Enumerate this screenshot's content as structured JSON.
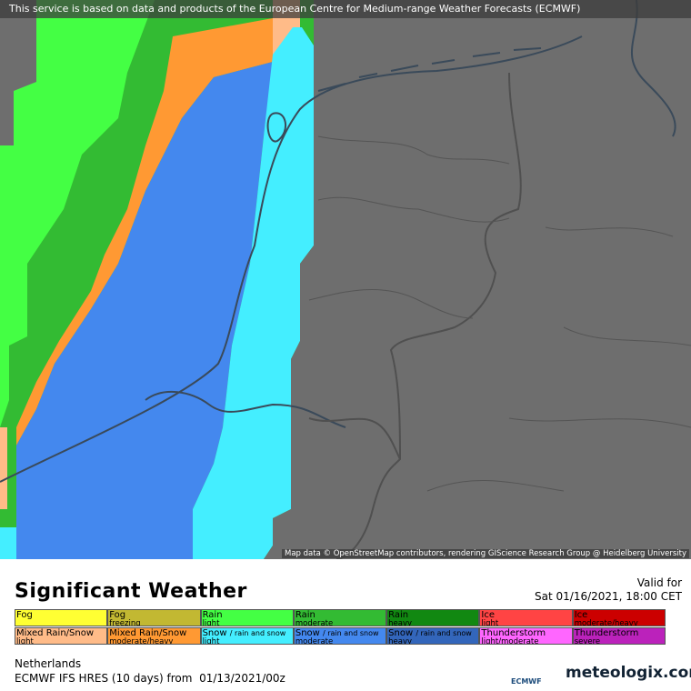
{
  "banner": "This service is based on data and products of the European Centre for Medium-range Weather Forecasts (ECMWF)",
  "attribution": "Map data © OpenStreetMap contributors, rendering GIScience Research Group @ Heidelberg University",
  "title": "Significant Weather",
  "valid_label": "Valid for",
  "valid_time": "Sat 01/16/2021, 18:00 CET",
  "legend": [
    [
      {
        "name": "Fog",
        "color": "#ffff33"
      },
      {
        "name": "Fog",
        "intensity": "freezing",
        "color": "#c2b832"
      },
      {
        "name": "Rain",
        "intensity": "light",
        "color": "#44ff44"
      },
      {
        "name": "Rain",
        "intensity": "moderate",
        "color": "#33bb33"
      },
      {
        "name": "Rain",
        "intensity": "heavy",
        "color": "#118811"
      },
      {
        "name": "Ice",
        "intensity": "light",
        "color": "#ff4444"
      },
      {
        "name": "Ice",
        "intensity": "moderate/heavy",
        "color": "#cc0000"
      }
    ],
    [
      {
        "name": "Mixed Rain/Snow",
        "intensity": "light",
        "color": "#ffbb88"
      },
      {
        "name": "Mixed Rain/Snow",
        "intensity": "moderate/heavy",
        "color": "#ff9933"
      },
      {
        "name": "Snow",
        "qualifier": "/ rain and snow",
        "intensity": "light",
        "color": "#44eeff"
      },
      {
        "name": "Snow",
        "qualifier": "/ rain and snow",
        "intensity": "moderate",
        "color": "#4488ee"
      },
      {
        "name": "Snow",
        "qualifier": "/ rain and snow",
        "intensity": "heavy",
        "color": "#3366bb"
      },
      {
        "name": "Thunderstorm",
        "intensity": "light/moderate",
        "color": "#ff66ff"
      },
      {
        "name": "Thunderstorm",
        "intensity": "severe",
        "color": "#bb22bb"
      }
    ]
  ],
  "region": "Netherlands",
  "model": "ECMWF IFS HRES (10 days) from  01/13/2021/00z",
  "logo_ecmwf": "ECMWF",
  "logo_meteologix": "meteologix.com"
}
